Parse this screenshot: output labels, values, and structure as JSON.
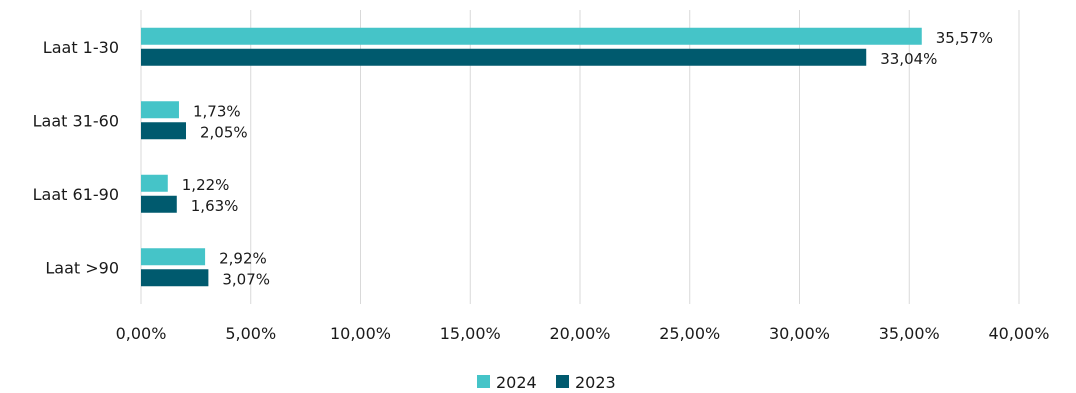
{
  "chart_data": {
    "type": "bar",
    "orientation": "horizontal",
    "categories": [
      "Laat 1-30",
      "Laat 31-60",
      "Laat 61-90",
      "Laat >90"
    ],
    "series": [
      {
        "name": "2024",
        "color": "#45C4C8",
        "values": [
          35.57,
          1.73,
          1.22,
          2.92
        ],
        "labels": [
          "35,57%",
          "1,73%",
          "1,22%",
          "2,92%"
        ]
      },
      {
        "name": "2023",
        "color": "#005A6E",
        "values": [
          33.04,
          2.05,
          1.63,
          3.07
        ],
        "labels": [
          "33,04%",
          "2,05%",
          "1,63%",
          "3,07%"
        ]
      }
    ],
    "xlim": [
      0,
      40
    ],
    "xticks": [
      0,
      5,
      10,
      15,
      20,
      25,
      30,
      35,
      40
    ],
    "xtick_labels": [
      "0,00%",
      "5,00%",
      "10,00%",
      "15,00%",
      "20,00%",
      "25,00%",
      "30,00%",
      "35,00%",
      "40,00%"
    ],
    "grid": "vertical",
    "grid_color": "#d9d9d9",
    "legend_position": "bottom"
  }
}
